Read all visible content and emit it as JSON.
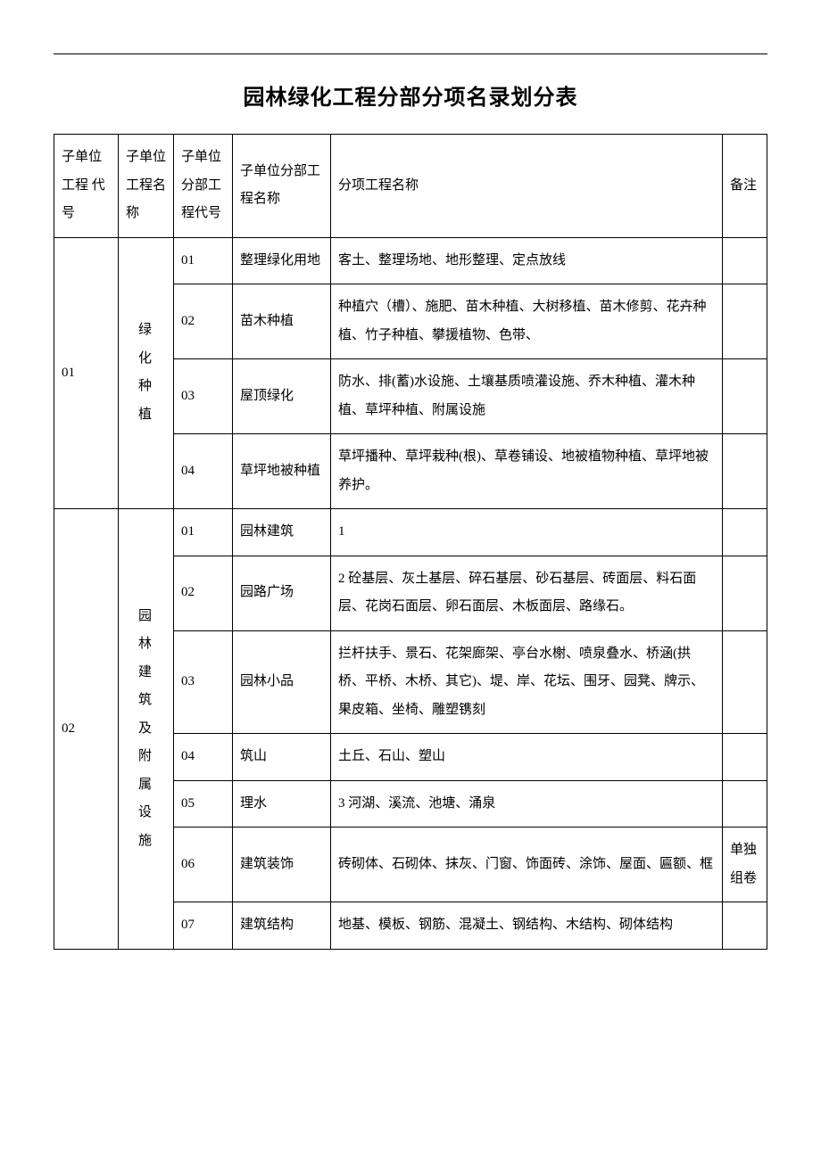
{
  "title": "园林绿化工程分部分项名录划分表",
  "header": {
    "c1": "子单位工程 代号",
    "c2": "子单位工程名称",
    "c3": "子单位分部工程代号",
    "c4": "子单位分部工程名称",
    "c5": "分项工程名称",
    "c6": "备注"
  },
  "group1": {
    "code": "01",
    "name_chars": [
      "绿",
      "化",
      "种",
      "植"
    ],
    "rows": [
      {
        "code": "01",
        "name": "整理绿化用地",
        "detail": "客土、整理场地、地形整理、定点放线",
        "note": ""
      },
      {
        "code": "02",
        "name": "苗木种植",
        "detail": "种植穴（槽）、施肥、苗木种植、大树移植、苗木修剪、花卉种植、竹子种植、攀援植物、色带、",
        "note": ""
      },
      {
        "code": "03",
        "name": "屋顶绿化",
        "detail": "防水、排(蓄)水设施、土壤基质喷灌设施、乔木种植、灌木种植、草坪种植、附属设施",
        "note": ""
      },
      {
        "code": "04",
        "name": "草坪地被种植",
        "detail": "草坪播种、草坪栽种(根)、草卷铺设、地被植物种植、草坪地被养护。",
        "note": ""
      }
    ]
  },
  "group2": {
    "code": "02",
    "name_chars": [
      "园",
      "林",
      "建",
      "筑",
      "及",
      "附",
      "属",
      "设",
      "施"
    ],
    "rows": [
      {
        "code": "01",
        "name": "园林建筑",
        "detail": "1",
        "note": ""
      },
      {
        "code": "02",
        "name": "园路广场",
        "detail": "2  砼基层、灰土基层、碎石基层、砂石基层、砖面层、料石面层、花岗石面层、卵石面层、木板面层、路缘石。",
        "note": ""
      },
      {
        "code": "03",
        "name": "园林小品",
        "detail": "拦杆扶手、景石、花架廊架、亭台水榭、喷泉叠水、桥涵(拱桥、平桥、木桥、其它)、堤、岸、花坛、围牙、园凳、牌示、果皮箱、坐椅、雕塑镌刻",
        "note": ""
      },
      {
        "code": "04",
        "name": "筑山",
        "detail": "土丘、石山、塑山",
        "note": ""
      },
      {
        "code": "05",
        "name": "理水",
        "detail": "3  河湖、溪流、池塘、涌泉",
        "note": ""
      },
      {
        "code": "06",
        "name": "建筑装饰",
        "detail": "砖砌体、石砌体、抹灰、门窗、饰面砖、涂饰、屋面、匾额、框",
        "note": "单独组卷"
      },
      {
        "code": "07",
        "name": "建筑结构",
        "detail": "地基、模板、钢筋、混凝土、钢结构、木结构、砌体结构",
        "note": ""
      }
    ]
  }
}
